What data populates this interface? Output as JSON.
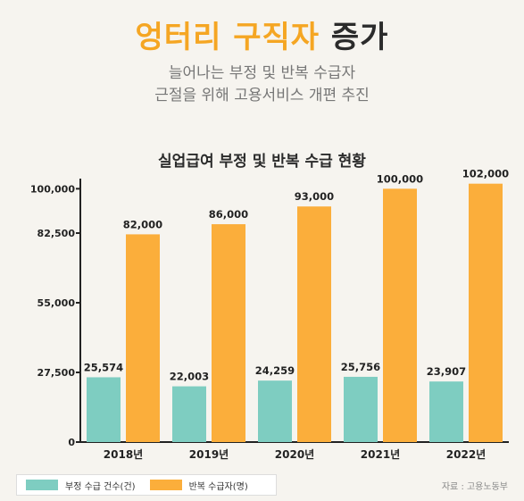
{
  "header": {
    "title_accent": "엉터리 구직자",
    "title_rest": " 증가",
    "subtitle_line1": "늘어나는 부정 및 반복 수급자",
    "subtitle_line2": "근절을 위해 고용서비스 개편 추진"
  },
  "chart_data": {
    "type": "bar",
    "title": "실업급여 부정 및 반복 수급 현황",
    "categories": [
      "2018년",
      "2019년",
      "2020년",
      "2021년",
      "2022년"
    ],
    "series": [
      {
        "name": "부정 수급 건수(건)",
        "values": [
          25574,
          22003,
          24259,
          25756,
          23907
        ],
        "labels": [
          "25,574",
          "22,003",
          "24,259",
          "25,756",
          "23,907"
        ],
        "color": "#7ecdc1"
      },
      {
        "name": "반복 수급자(명)",
        "values": [
          82000,
          86000,
          93000,
          100000,
          102000
        ],
        "labels": [
          "82,000",
          "86,000",
          "93,000",
          "100,000",
          "102,000"
        ],
        "color": "#fbae3b"
      }
    ],
    "yticks": [
      0,
      27500,
      55000,
      82500,
      100000
    ],
    "ytick_labels": [
      "0",
      "27,500",
      "55,000",
      "82,500",
      "100,000"
    ],
    "ylim": [
      0,
      104000
    ],
    "grid": false,
    "legend": "bottom-left"
  },
  "source": "자료 : 고용노동부"
}
